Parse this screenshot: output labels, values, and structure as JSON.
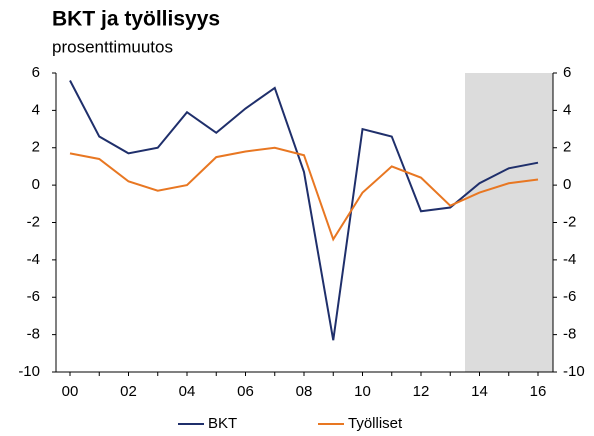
{
  "chart_data": {
    "type": "line",
    "title": "BKT ja työllisyys",
    "subtitle": "prosenttimuutos",
    "categories": [
      "00",
      null,
      "02",
      null,
      "04",
      null,
      "06",
      null,
      "08",
      null,
      "10",
      null,
      "12",
      null,
      "14",
      null,
      "16"
    ],
    "series": [
      {
        "name": "BKT",
        "color": "#1f2f6b",
        "values": [
          5.6,
          2.6,
          1.7,
          2.0,
          3.9,
          2.8,
          4.1,
          5.2,
          0.7,
          -8.3,
          3.0,
          2.6,
          -1.4,
          -1.2,
          0.1,
          0.9,
          1.2
        ]
      },
      {
        "name": "Työlliset",
        "color": "#e87722",
        "values": [
          1.7,
          1.4,
          0.2,
          -0.3,
          0.0,
          1.5,
          1.8,
          2.0,
          1.6,
          -2.9,
          -0.4,
          1.0,
          0.4,
          -1.1,
          -0.4,
          0.1,
          0.3
        ]
      }
    ],
    "ylim": [
      -10,
      6
    ],
    "yticks": [
      -10,
      -8,
      -6,
      -4,
      -2,
      0,
      2,
      4,
      6
    ],
    "y2lim": [
      -10,
      6
    ],
    "y2ticks": [
      -10,
      -8,
      -6,
      -4,
      -2,
      0,
      2,
      4,
      6
    ],
    "grid": false,
    "legend": "bottom"
  }
}
